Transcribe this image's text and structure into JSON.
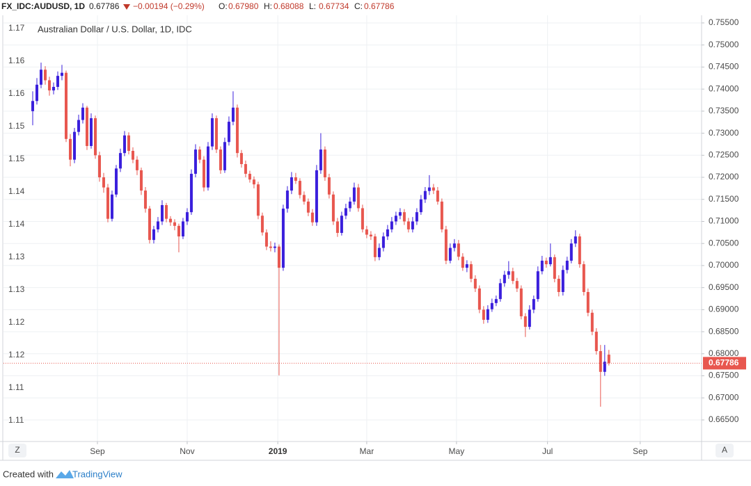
{
  "header": {
    "symbol": "FX_IDC:AUDUSD, 1D",
    "last": "0.67786",
    "change": "−0.00194 (−0.29%)",
    "ohlc": [
      {
        "label": "O:",
        "value": "0.67980"
      },
      {
        "label": "H:",
        "value": "0.68088"
      },
      {
        "label": "L:",
        "value": "0.67734"
      },
      {
        "label": "C:",
        "value": "0.67786"
      }
    ]
  },
  "buttons": {
    "left": "Z",
    "right": "A"
  },
  "footer": {
    "created": "Created with",
    "brand": "TradingView"
  },
  "chart_data": {
    "type": "candlestick",
    "title": "Australian Dollar / U.S. Dollar, 1D, IDC",
    "up_color": "#3a1fdc",
    "down_color": "#e8574f",
    "grid": true,
    "xlim": [
      -7,
      160.2
    ],
    "xticks": [
      {
        "value": 15.5,
        "label": "Sep"
      },
      {
        "value": 37,
        "label": "Nov"
      },
      {
        "value": 58.7,
        "label": "2019"
      },
      {
        "value": 80,
        "label": "Mar"
      },
      {
        "value": 101.5,
        "label": "May"
      },
      {
        "value": 123.3,
        "label": "Jul"
      },
      {
        "value": 145.5,
        "label": "Sep"
      }
    ],
    "ylim": [
      0.66011,
      0.75673
    ],
    "yticks": [
      {
        "value": 0.755,
        "label": "0.75500"
      },
      {
        "value": 0.75,
        "label": "0.75000"
      },
      {
        "value": 0.745,
        "label": "0.74500"
      },
      {
        "value": 0.74,
        "label": "0.74000"
      },
      {
        "value": 0.735,
        "label": "0.73500"
      },
      {
        "value": 0.73,
        "label": "0.73000"
      },
      {
        "value": 0.725,
        "label": "0.72500"
      },
      {
        "value": 0.72,
        "label": "0.72000"
      },
      {
        "value": 0.715,
        "label": "0.71500"
      },
      {
        "value": 0.71,
        "label": "0.71000"
      },
      {
        "value": 0.705,
        "label": "0.70500"
      },
      {
        "value": 0.7,
        "label": "0.70000"
      },
      {
        "value": 0.695,
        "label": "0.69500"
      },
      {
        "value": 0.69,
        "label": "0.69000"
      },
      {
        "value": 0.685,
        "label": "0.68500"
      },
      {
        "value": 0.68,
        "label": "0.68000"
      },
      {
        "value": 0.675,
        "label": "0.67500"
      },
      {
        "value": 0.67,
        "label": "0.67000"
      },
      {
        "value": 0.665,
        "label": "0.66500"
      }
    ],
    "y2lim": [
      1.10681,
      1.17202
    ],
    "y2ticks": [
      {
        "value": 1.17,
        "label": "1.17"
      },
      {
        "value": 1.165,
        "label": "1.16"
      },
      {
        "value": 1.16,
        "label": "1.16"
      },
      {
        "value": 1.155,
        "label": "1.15"
      },
      {
        "value": 1.15,
        "label": "1.15"
      },
      {
        "value": 1.145,
        "label": "1.14"
      },
      {
        "value": 1.14,
        "label": "1.14"
      },
      {
        "value": 1.135,
        "label": "1.13"
      },
      {
        "value": 1.13,
        "label": "1.13"
      },
      {
        "value": 1.125,
        "label": "1.12"
      },
      {
        "value": 1.12,
        "label": "1.12"
      },
      {
        "value": 1.115,
        "label": "1.11"
      },
      {
        "value": 1.11,
        "label": "1.11"
      }
    ],
    "candles": [
      [
        0.735,
        0.7395,
        0.7318,
        0.7373
      ],
      [
        0.7373,
        0.7425,
        0.7365,
        0.741
      ],
      [
        0.741,
        0.746,
        0.7402,
        0.7444
      ],
      [
        0.7444,
        0.7452,
        0.741,
        0.742
      ],
      [
        0.742,
        0.7428,
        0.7385,
        0.7397
      ],
      [
        0.7397,
        0.7415,
        0.7388,
        0.7405
      ],
      [
        0.7405,
        0.744,
        0.7398,
        0.743
      ],
      [
        0.743,
        0.7455,
        0.742,
        0.7437
      ],
      [
        0.7437,
        0.7442,
        0.728,
        0.7287
      ],
      [
        0.7287,
        0.7298,
        0.7225,
        0.724
      ],
      [
        0.724,
        0.7312,
        0.7232,
        0.7303
      ],
      [
        0.7303,
        0.7342,
        0.7295,
        0.733
      ],
      [
        0.733,
        0.7368,
        0.7322,
        0.7358
      ],
      [
        0.7358,
        0.7362,
        0.7262,
        0.7271
      ],
      [
        0.7271,
        0.7345,
        0.7265,
        0.7334
      ],
      [
        0.7334,
        0.734,
        0.7242,
        0.725
      ],
      [
        0.725,
        0.7258,
        0.719,
        0.72
      ],
      [
        0.72,
        0.721,
        0.7165,
        0.7177
      ],
      [
        0.7177,
        0.7185,
        0.7098,
        0.7106
      ],
      [
        0.7106,
        0.717,
        0.71,
        0.7161
      ],
      [
        0.7161,
        0.7228,
        0.7155,
        0.722
      ],
      [
        0.722,
        0.7265,
        0.7212,
        0.7255
      ],
      [
        0.7255,
        0.7305,
        0.7248,
        0.7295
      ],
      [
        0.7295,
        0.7302,
        0.7252,
        0.726
      ],
      [
        0.726,
        0.7268,
        0.7232,
        0.724
      ],
      [
        0.724,
        0.7248,
        0.7205,
        0.7216
      ],
      [
        0.7216,
        0.7222,
        0.716,
        0.717
      ],
      [
        0.717,
        0.7178,
        0.712,
        0.7129
      ],
      [
        0.7129,
        0.7135,
        0.705,
        0.7058
      ],
      [
        0.7058,
        0.709,
        0.705,
        0.7082
      ],
      [
        0.7082,
        0.711,
        0.7075,
        0.71
      ],
      [
        0.71,
        0.7148,
        0.7092,
        0.7137
      ],
      [
        0.7137,
        0.7142,
        0.7098,
        0.7106
      ],
      [
        0.7106,
        0.7112,
        0.709,
        0.7098
      ],
      [
        0.7098,
        0.7105,
        0.708,
        0.709
      ],
      [
        0.709,
        0.7095,
        0.703,
        0.7066
      ],
      [
        0.7066,
        0.7108,
        0.706,
        0.71
      ],
      [
        0.71,
        0.713,
        0.7092,
        0.7121
      ],
      [
        0.7121,
        0.7218,
        0.7115,
        0.7208
      ],
      [
        0.7208,
        0.7275,
        0.72,
        0.7263
      ],
      [
        0.7263,
        0.727,
        0.7232,
        0.724
      ],
      [
        0.724,
        0.7248,
        0.7168,
        0.7177
      ],
      [
        0.7177,
        0.728,
        0.717,
        0.727
      ],
      [
        0.727,
        0.7345,
        0.7262,
        0.7334
      ],
      [
        0.7334,
        0.734,
        0.7255,
        0.7263
      ],
      [
        0.7263,
        0.727,
        0.7208,
        0.7216
      ],
      [
        0.7216,
        0.729,
        0.721,
        0.728
      ],
      [
        0.728,
        0.7338,
        0.7272,
        0.7326
      ],
      [
        0.7326,
        0.7395,
        0.7318,
        0.7358
      ],
      [
        0.7358,
        0.7365,
        0.7245,
        0.7255
      ],
      [
        0.7255,
        0.7262,
        0.7222,
        0.723
      ],
      [
        0.723,
        0.7238,
        0.72,
        0.7208
      ],
      [
        0.7208,
        0.7215,
        0.7188,
        0.7195
      ],
      [
        0.7195,
        0.7202,
        0.7175,
        0.7184
      ],
      [
        0.7184,
        0.719,
        0.7105,
        0.7113
      ],
      [
        0.7113,
        0.712,
        0.7068,
        0.7075
      ],
      [
        0.7075,
        0.7082,
        0.7035,
        0.7043
      ],
      [
        0.7043,
        0.7055,
        0.7032,
        0.704
      ],
      [
        0.704,
        0.7052,
        0.703,
        0.7043
      ],
      [
        0.7043,
        0.7048,
        0.6751,
        0.6995
      ],
      [
        0.6995,
        0.7138,
        0.6988,
        0.7129
      ],
      [
        0.7129,
        0.718,
        0.712,
        0.717
      ],
      [
        0.717,
        0.7212,
        0.7162,
        0.72
      ],
      [
        0.72,
        0.721,
        0.7185,
        0.7192
      ],
      [
        0.7192,
        0.7198,
        0.7152,
        0.716
      ],
      [
        0.716,
        0.7168,
        0.7138,
        0.7145
      ],
      [
        0.7145,
        0.7152,
        0.7112,
        0.712
      ],
      [
        0.712,
        0.7128,
        0.709,
        0.7098
      ],
      [
        0.7098,
        0.7228,
        0.709,
        0.7216
      ],
      [
        0.7216,
        0.73,
        0.7208,
        0.7263
      ],
      [
        0.7263,
        0.727,
        0.7192,
        0.72
      ],
      [
        0.72,
        0.7208,
        0.7152,
        0.7161
      ],
      [
        0.7161,
        0.7168,
        0.7092,
        0.71
      ],
      [
        0.71,
        0.7108,
        0.7065,
        0.7074
      ],
      [
        0.7074,
        0.7122,
        0.7068,
        0.7113
      ],
      [
        0.7113,
        0.714,
        0.7105,
        0.713
      ],
      [
        0.713,
        0.7155,
        0.7122,
        0.7145
      ],
      [
        0.7145,
        0.7188,
        0.7138,
        0.7177
      ],
      [
        0.7177,
        0.7185,
        0.7122,
        0.713
      ],
      [
        0.713,
        0.7138,
        0.7075,
        0.7082
      ],
      [
        0.7082,
        0.709,
        0.7062,
        0.707
      ],
      [
        0.707,
        0.7078,
        0.7058,
        0.7066
      ],
      [
        0.7066,
        0.7072,
        0.701,
        0.7019
      ],
      [
        0.7019,
        0.705,
        0.7012,
        0.704
      ],
      [
        0.704,
        0.7075,
        0.7032,
        0.7066
      ],
      [
        0.7066,
        0.7092,
        0.7058,
        0.7082
      ],
      [
        0.7082,
        0.711,
        0.7075,
        0.71
      ],
      [
        0.71,
        0.7122,
        0.7092,
        0.7113
      ],
      [
        0.7113,
        0.713,
        0.7105,
        0.7121
      ],
      [
        0.7121,
        0.7128,
        0.7092,
        0.71
      ],
      [
        0.71,
        0.7108,
        0.7075,
        0.7082
      ],
      [
        0.7082,
        0.711,
        0.7075,
        0.71
      ],
      [
        0.71,
        0.713,
        0.7092,
        0.7121
      ],
      [
        0.7121,
        0.716,
        0.7115,
        0.715
      ],
      [
        0.715,
        0.7178,
        0.7142,
        0.7169
      ],
      [
        0.7169,
        0.7205,
        0.716,
        0.7177
      ],
      [
        0.7177,
        0.7185,
        0.7162,
        0.717
      ],
      [
        0.717,
        0.7178,
        0.7138,
        0.7145
      ],
      [
        0.7145,
        0.7152,
        0.7075,
        0.7082
      ],
      [
        0.7082,
        0.709,
        0.7003,
        0.7011
      ],
      [
        0.7011,
        0.705,
        0.7005,
        0.704
      ],
      [
        0.704,
        0.706,
        0.7032,
        0.705
      ],
      [
        0.705,
        0.7058,
        0.7012,
        0.702
      ],
      [
        0.702,
        0.7028,
        0.6988,
        0.6995
      ],
      [
        0.6995,
        0.7012,
        0.6985,
        0.7003
      ],
      [
        0.7003,
        0.701,
        0.6962,
        0.697
      ],
      [
        0.697,
        0.6978,
        0.694,
        0.6948
      ],
      [
        0.6948,
        0.6955,
        0.6892,
        0.69
      ],
      [
        0.69,
        0.6908,
        0.6868,
        0.6877
      ],
      [
        0.6877,
        0.691,
        0.687,
        0.6901
      ],
      [
        0.6901,
        0.6925,
        0.6895,
        0.6915
      ],
      [
        0.6915,
        0.6932,
        0.6908,
        0.6924
      ],
      [
        0.6924,
        0.697,
        0.6918,
        0.696
      ],
      [
        0.696,
        0.6988,
        0.6952,
        0.6979
      ],
      [
        0.6979,
        0.701,
        0.697,
        0.6987
      ],
      [
        0.6987,
        0.6995,
        0.6958,
        0.6965
      ],
      [
        0.6965,
        0.6972,
        0.694,
        0.6948
      ],
      [
        0.6948,
        0.6955,
        0.6878,
        0.6885
      ],
      [
        0.6885,
        0.6892,
        0.6838,
        0.6861
      ],
      [
        0.6861,
        0.691,
        0.6855,
        0.69
      ],
      [
        0.69,
        0.6932,
        0.6892,
        0.6924
      ],
      [
        0.6924,
        0.6998,
        0.6918,
        0.6987
      ],
      [
        0.6987,
        0.7022,
        0.698,
        0.7011
      ],
      [
        0.7011,
        0.7018,
        0.6995,
        0.7003
      ],
      [
        0.7003,
        0.705,
        0.6998,
        0.7019
      ],
      [
        0.7019,
        0.7025,
        0.6962,
        0.697
      ],
      [
        0.697,
        0.6978,
        0.693,
        0.694
      ],
      [
        0.694,
        0.7,
        0.6932,
        0.699
      ],
      [
        0.699,
        0.702,
        0.6982,
        0.7011
      ],
      [
        0.7011,
        0.706,
        0.7005,
        0.705
      ],
      [
        0.705,
        0.708,
        0.7042,
        0.7066
      ],
      [
        0.7066,
        0.7072,
        0.6995,
        0.7003
      ],
      [
        0.7003,
        0.701,
        0.6932,
        0.694
      ],
      [
        0.694,
        0.6948,
        0.6885,
        0.6893
      ],
      [
        0.6893,
        0.69,
        0.6842,
        0.685
      ],
      [
        0.685,
        0.6858,
        0.6798,
        0.6806
      ],
      [
        0.6806,
        0.682,
        0.668,
        0.6759
      ],
      [
        0.6759,
        0.682,
        0.675,
        0.6782
      ],
      [
        0.6798,
        0.68088,
        0.67734,
        0.67786
      ]
    ]
  }
}
